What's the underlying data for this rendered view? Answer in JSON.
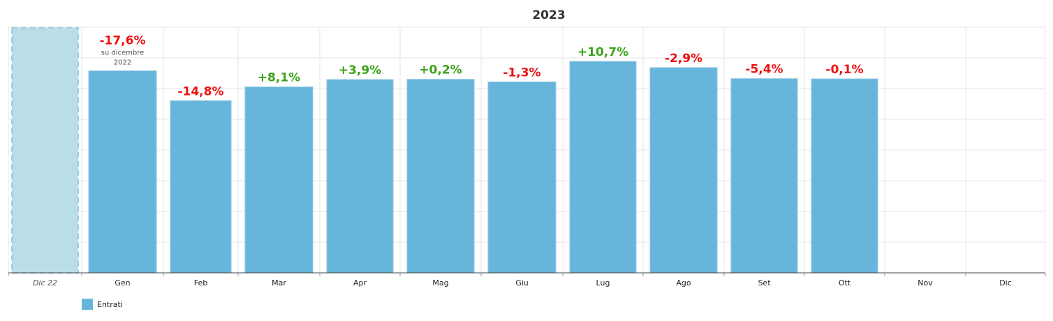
{
  "chart_data": {
    "type": "bar",
    "title": "2023",
    "previous": {
      "label": "Dic 22",
      "value": 10.68
    },
    "categories": [
      "Gen",
      "Feb",
      "Mar",
      "Apr",
      "Mag",
      "Giu",
      "Lug",
      "Ago",
      "Set",
      "Ott",
      "Nov",
      "Dic"
    ],
    "series": [
      {
        "name": "Entrati",
        "values": [
          8.8,
          7.5,
          8.1,
          8.42,
          8.43,
          8.32,
          9.21,
          8.94,
          8.46,
          8.45,
          null,
          null
        ]
      }
    ],
    "changes": [
      "-17,6%",
      "-14,8%",
      "+8,1%",
      "+3,9%",
      "+0,2%",
      "-1,3%",
      "+10,7%",
      "-2,9%",
      "-5,4%",
      "-0,1%",
      null,
      null
    ],
    "first_change_note": [
      "su dicembre",
      "2022"
    ],
    "ylim": [
      0,
      10.7
    ],
    "grid": true,
    "legend_position": "bottom-left",
    "colors": {
      "bar": "#68B5DC",
      "bar_border": "#8DC8E6",
      "previous_fill": "#BADDE8",
      "previous_border": "#9ACCDD",
      "positive": "#3AA31A",
      "negative": "#EE1111",
      "grid": "#E4E4E4"
    }
  }
}
